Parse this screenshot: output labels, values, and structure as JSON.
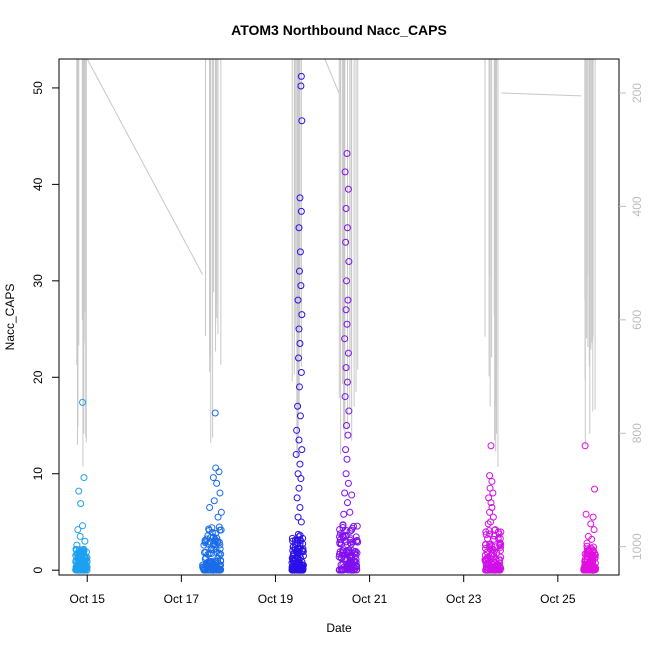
{
  "chart_data": {
    "type": "scatter",
    "title": "ATOM3 Northbound Nacc_CAPS",
    "xlabel": "Date",
    "ylabel": "Nacc_CAPS",
    "x_ticks": [
      "Oct 15",
      "Oct 17",
      "Oct 19",
      "Oct 21",
      "Oct 23",
      "Oct 25"
    ],
    "x_tick_days": [
      15,
      17,
      19,
      21,
      23,
      25
    ],
    "xlim": [
      14.4,
      26.3
    ],
    "ylim": [
      -0.5,
      53
    ],
    "y_ticks": [
      0,
      10,
      20,
      30,
      40,
      50
    ],
    "y2_label": "",
    "y2_ticks": [
      200,
      400,
      600,
      800,
      1000
    ],
    "y2lim": [
      1050,
      140
    ],
    "marker": "open-circle",
    "secondary_series_color": "#c8c8c8",
    "clusters": [
      {
        "x_start": 14.75,
        "x_end": 15.0,
        "color": "#1ea0f0",
        "dense_max": 2.2,
        "points": [
          [
            14.9,
            17.4
          ],
          [
            14.93,
            9.6
          ],
          [
            14.82,
            8.2
          ],
          [
            14.86,
            6.9
          ],
          [
            14.8,
            4.2
          ],
          [
            14.9,
            4.6
          ],
          [
            14.85,
            3.5
          ],
          [
            14.95,
            3.0
          ],
          [
            14.78,
            2.6
          ]
        ]
      },
      {
        "x_start": 17.45,
        "x_end": 17.85,
        "color": "#1a6ce8",
        "dense_max": 4.5,
        "points": [
          [
            17.72,
            16.3
          ],
          [
            17.73,
            10.6
          ],
          [
            17.8,
            10.2
          ],
          [
            17.68,
            9.6
          ],
          [
            17.75,
            9.0
          ],
          [
            17.82,
            8.0
          ],
          [
            17.6,
            6.5
          ],
          [
            17.7,
            7.2
          ],
          [
            17.85,
            6.0
          ],
          [
            17.78,
            5.5
          ]
        ]
      },
      {
        "x_start": 19.35,
        "x_end": 19.6,
        "color": "#2a10e8",
        "dense_max": 4.0,
        "points": [
          [
            19.55,
            51.2
          ],
          [
            19.54,
            50.2
          ],
          [
            19.56,
            46.6
          ],
          [
            19.52,
            38.6
          ],
          [
            19.55,
            37.2
          ],
          [
            19.5,
            35.5
          ],
          [
            19.53,
            33.0
          ],
          [
            19.51,
            31.0
          ],
          [
            19.54,
            29.5
          ],
          [
            19.48,
            28.0
          ],
          [
            19.56,
            26.5
          ],
          [
            19.5,
            25.0
          ],
          [
            19.52,
            23.5
          ],
          [
            19.49,
            22.0
          ],
          [
            19.55,
            20.5
          ],
          [
            19.51,
            19.0
          ],
          [
            19.47,
            17.0
          ],
          [
            19.53,
            16.0
          ],
          [
            19.45,
            14.5
          ],
          [
            19.5,
            13.5
          ],
          [
            19.56,
            12.5
          ],
          [
            19.44,
            12.0
          ],
          [
            19.52,
            11.0
          ],
          [
            19.48,
            10.0
          ],
          [
            19.54,
            9.5
          ],
          [
            19.5,
            8.5
          ],
          [
            19.46,
            7.5
          ],
          [
            19.52,
            6.5
          ],
          [
            19.48,
            5.5
          ],
          [
            19.55,
            5.0
          ]
        ]
      },
      {
        "x_start": 20.35,
        "x_end": 20.75,
        "color": "#8010f0",
        "dense_max": 5.0,
        "points": [
          [
            20.52,
            43.2
          ],
          [
            20.48,
            41.3
          ],
          [
            20.55,
            39.5
          ],
          [
            20.5,
            37.5
          ],
          [
            20.53,
            35.5
          ],
          [
            20.49,
            34.0
          ],
          [
            20.56,
            32.0
          ],
          [
            20.51,
            30.0
          ],
          [
            20.54,
            28.0
          ],
          [
            20.5,
            27.0
          ],
          [
            20.52,
            25.5
          ],
          [
            20.47,
            24.0
          ],
          [
            20.55,
            22.5
          ],
          [
            20.5,
            21.0
          ],
          [
            20.53,
            19.5
          ],
          [
            20.48,
            18.0
          ],
          [
            20.56,
            16.5
          ],
          [
            20.51,
            15.0
          ],
          [
            20.54,
            14.0
          ],
          [
            20.49,
            12.5
          ],
          [
            20.52,
            11.5
          ],
          [
            20.5,
            10.0
          ],
          [
            20.55,
            9.0
          ],
          [
            20.47,
            8.0
          ],
          [
            20.53,
            7.0
          ],
          [
            20.58,
            6.0
          ],
          [
            20.62,
            7.8
          ],
          [
            20.45,
            5.8
          ]
        ]
      },
      {
        "x_start": 23.45,
        "x_end": 23.8,
        "color": "#d010e8",
        "dense_max": 4.5,
        "points": [
          [
            23.58,
            12.9
          ],
          [
            23.55,
            9.8
          ],
          [
            23.6,
            9.2
          ],
          [
            23.56,
            8.5
          ],
          [
            23.62,
            8.0
          ],
          [
            23.53,
            7.5
          ],
          [
            23.58,
            7.0
          ],
          [
            23.6,
            6.5
          ],
          [
            23.55,
            6.0
          ],
          [
            23.63,
            5.5
          ],
          [
            23.57,
            5.0
          ],
          [
            23.52,
            4.8
          ]
        ]
      },
      {
        "x_start": 25.55,
        "x_end": 25.8,
        "color": "#e010e0",
        "dense_max": 2.5,
        "points": [
          [
            25.58,
            12.9
          ],
          [
            25.78,
            8.4
          ],
          [
            25.6,
            5.8
          ],
          [
            25.75,
            5.5
          ],
          [
            25.7,
            4.8
          ],
          [
            25.77,
            4.2
          ],
          [
            25.65,
            3.5
          ],
          [
            25.72,
            3.2
          ],
          [
            25.62,
            2.8
          ]
        ]
      }
    ]
  }
}
